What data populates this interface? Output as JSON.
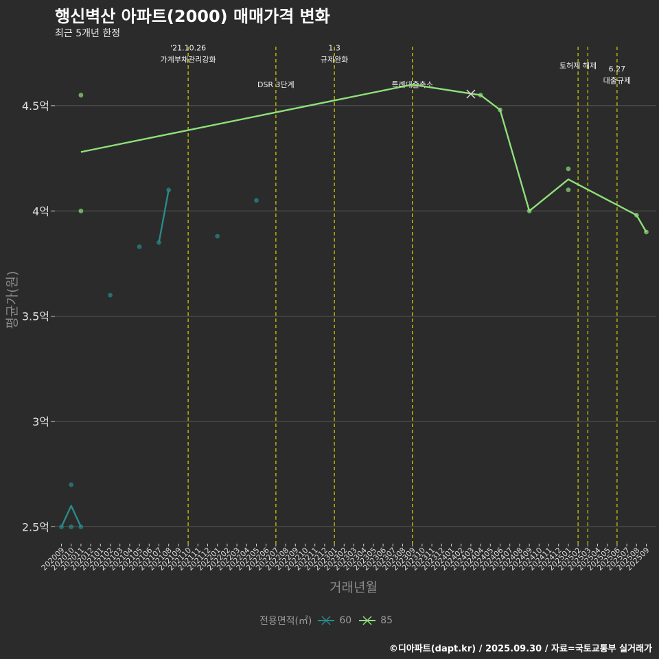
{
  "chart_data": {
    "type": "line",
    "title": "행신벽산 아파트(2000) 매매가격 변화",
    "subtitle": "최근 5개년 한정",
    "xlabel": "거래년월",
    "ylabel": "평균가(원)",
    "categories": [
      "202009",
      "202010",
      "202011",
      "202012",
      "202101",
      "202102",
      "202103",
      "202104",
      "202105",
      "202106",
      "202107",
      "202108",
      "202109",
      "202110",
      "202111",
      "202112",
      "202201",
      "202202",
      "202203",
      "202204",
      "202205",
      "202206",
      "202207",
      "202208",
      "202209",
      "202210",
      "202211",
      "202212",
      "202301",
      "202302",
      "202303",
      "202304",
      "202305",
      "202306",
      "202307",
      "202308",
      "202309",
      "202310",
      "202311",
      "202312",
      "202401",
      "202402",
      "202403",
      "202404",
      "202405",
      "202406",
      "202407",
      "202408",
      "202409",
      "202410",
      "202411",
      "202412",
      "202501",
      "202502",
      "202503",
      "202504",
      "202505",
      "202506",
      "202507",
      "202508",
      "202509"
    ],
    "y_ticks": [
      {
        "value": 2.5,
        "label": "2.5억"
      },
      {
        "value": 3.0,
        "label": "3억"
      },
      {
        "value": 3.5,
        "label": "3.5억"
      },
      {
        "value": 4.0,
        "label": "4억"
      },
      {
        "value": 4.5,
        "label": "4.5억"
      }
    ],
    "ylim": [
      2.42,
      4.78
    ],
    "grid": true,
    "legend_position": "bottom",
    "legend_title": "전용면적(㎡)",
    "series": [
      {
        "name": "60",
        "color": "#2a8a8a",
        "line": [
          [
            "202009",
            2.5
          ],
          [
            "202010",
            2.6
          ],
          [
            "202011",
            2.5
          ],
          null,
          [
            "202107",
            3.85
          ],
          [
            "202108",
            4.1
          ]
        ],
        "points": [
          [
            "202009",
            2.5
          ],
          [
            "202010",
            2.7
          ],
          [
            "202010",
            2.5
          ],
          [
            "202011",
            2.5
          ],
          [
            "202102",
            3.6
          ],
          [
            "202105",
            3.83
          ],
          [
            "202107",
            3.85
          ],
          [
            "202108",
            4.1
          ],
          [
            "202201",
            3.88
          ],
          [
            "202205",
            4.05
          ]
        ]
      },
      {
        "name": "85",
        "color": "#8fe07a",
        "line": [
          [
            "202011",
            4.28
          ],
          [
            "202309",
            4.6
          ],
          [
            "202404",
            4.55
          ],
          [
            "202406",
            4.48
          ],
          [
            "202409",
            4.0
          ],
          [
            "202501",
            4.15
          ],
          [
            "202508",
            3.98
          ],
          [
            "202509",
            3.9
          ]
        ],
        "points": [
          [
            "202011",
            4.55
          ],
          [
            "202011",
            4.0
          ],
          [
            "202404",
            4.55
          ],
          [
            "202406",
            4.48
          ],
          [
            "202409",
            4.0
          ],
          [
            "202501",
            4.2
          ],
          [
            "202501",
            4.1
          ],
          [
            "202508",
            3.98
          ],
          [
            "202509",
            3.9
          ]
        ],
        "cross_marks": [
          [
            "202403",
            4.555
          ]
        ]
      }
    ],
    "annotations": [
      {
        "x": "202110",
        "lines": [
          "'21.10.26",
          "가계부채관리강화"
        ],
        "label_y": 4.72
      },
      {
        "x": "202207",
        "lines": [
          "DSR 3단계"
        ],
        "label_y": 4.6
      },
      {
        "x": "202301",
        "lines": [
          "1.3",
          "규제완화"
        ],
        "label_y": 4.72
      },
      {
        "x": "202309",
        "lines": [
          "특례대출축소"
        ],
        "label_y": 4.6
      },
      {
        "x": "202502",
        "lines": [
          "토허제 해제"
        ],
        "label_y": 4.69
      },
      {
        "x": "202503",
        "lines": [],
        "label_y": 4.69
      },
      {
        "x": "202506",
        "lines": [
          "6.27",
          "대출규제"
        ],
        "label_y": 4.62
      }
    ]
  },
  "caption": "©디아파트(dapt.kr) / 2025.09.30 / 자료=국토교통부 실거래가"
}
